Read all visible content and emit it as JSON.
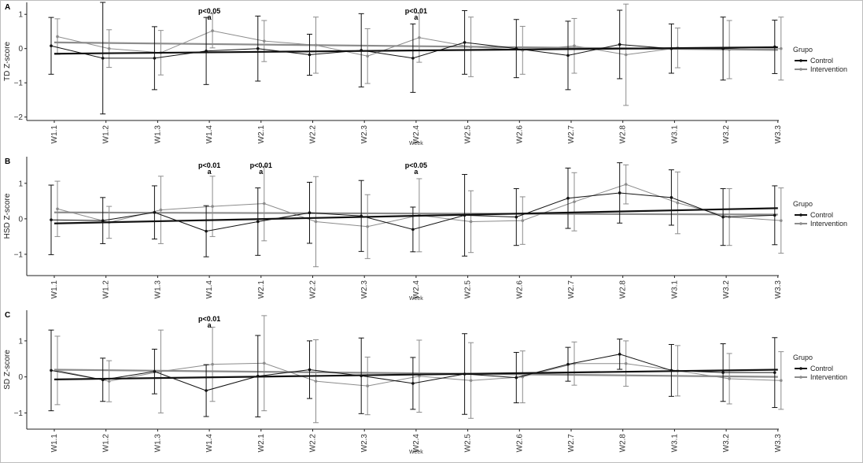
{
  "colors": {
    "control": "#111111",
    "intervention": "#8c8c8c"
  },
  "chart_data": [
    {
      "type": "line",
      "panel": "A",
      "ylabel": "TD Z-score",
      "xlabel": "Week",
      "ylim": [
        -2.1,
        1.35
      ],
      "yticks": [
        -2,
        -1,
        0,
        1
      ],
      "categories": [
        "W1.1",
        "W1.2",
        "W1.3",
        "W1.4",
        "W2.1",
        "W2.2",
        "W2.3",
        "W2.4",
        "W2.5",
        "W2.6",
        "W2.7",
        "W2.8",
        "W3.1",
        "W3.2",
        "W3.3"
      ],
      "legend": {
        "title": "Grupo",
        "position": "right"
      },
      "series": [
        {
          "name": "Control",
          "values": [
            0.08,
            -0.28,
            -0.28,
            -0.07,
            0.0,
            -0.18,
            -0.05,
            -0.28,
            0.18,
            0.0,
            -0.2,
            0.12,
            0.0,
            0.0,
            0.05
          ],
          "err": [
            0.83,
            1.63,
            0.92,
            0.98,
            0.95,
            0.6,
            1.07,
            1.0,
            0.93,
            0.85,
            1.0,
            1.0,
            0.72,
            0.92,
            0.78
          ],
          "trend": [
            -0.15,
            0.04
          ]
        },
        {
          "name": "Intervention",
          "values": [
            0.35,
            0.0,
            -0.12,
            0.52,
            0.22,
            0.1,
            -0.22,
            0.32,
            0.05,
            -0.05,
            0.08,
            -0.18,
            0.02,
            -0.03,
            0.0
          ],
          "err": [
            0.52,
            0.55,
            0.65,
            0.5,
            0.6,
            0.82,
            0.8,
            0.72,
            0.87,
            0.7,
            0.8,
            1.48,
            0.58,
            0.85,
            0.92
          ],
          "trend": [
            0.18,
            -0.04
          ]
        }
      ],
      "annotations": [
        {
          "category": "W1.4",
          "text": "p<0.05",
          "sub": "a"
        },
        {
          "category": "W2.4",
          "text": "p<0.01",
          "sub": "a"
        }
      ]
    },
    {
      "type": "line",
      "panel": "B",
      "ylabel": "HSD Z-score",
      "xlabel": "Week",
      "ylim": [
        -1.6,
        1.75
      ],
      "yticks": [
        -1,
        0,
        1
      ],
      "categories": [
        "W1.1",
        "W1.2",
        "W1.3",
        "W1.4",
        "W2.1",
        "W2.2",
        "W2.3",
        "W2.4",
        "W2.5",
        "W2.6",
        "W2.7",
        "W2.8",
        "W3.1",
        "W3.2",
        "W3.3"
      ],
      "legend": {
        "title": "Grupo",
        "position": "right"
      },
      "series": [
        {
          "name": "Control",
          "values": [
            -0.03,
            -0.05,
            0.18,
            -0.35,
            -0.08,
            0.17,
            0.08,
            -0.3,
            0.1,
            0.05,
            0.58,
            0.73,
            0.6,
            0.05,
            0.1
          ],
          "err": [
            0.98,
            0.65,
            0.75,
            0.72,
            0.95,
            0.86,
            1.0,
            0.63,
            1.15,
            0.8,
            0.85,
            0.85,
            0.78,
            0.8,
            0.83
          ],
          "trend": [
            -0.13,
            0.3
          ]
        },
        {
          "name": "Intervention",
          "values": [
            0.28,
            -0.1,
            0.25,
            0.35,
            0.43,
            -0.08,
            -0.22,
            0.1,
            -0.08,
            -0.05,
            0.48,
            0.97,
            0.45,
            0.05,
            -0.05
          ],
          "err": [
            0.78,
            0.45,
            0.95,
            0.85,
            1.05,
            1.27,
            0.9,
            1.03,
            0.87,
            0.67,
            0.82,
            0.55,
            0.87,
            0.8,
            0.92
          ],
          "trend": [
            0.18,
            0.12
          ]
        }
      ],
      "annotations": [
        {
          "category": "W1.4",
          "text": "p<0.01",
          "sub": "a"
        },
        {
          "category": "W2.1",
          "text": "p<0.01",
          "sub": "a"
        },
        {
          "category": "W2.4",
          "text": "p<0.05",
          "sub": "a"
        }
      ]
    },
    {
      "type": "line",
      "panel": "C",
      "ylabel": "SD Z-score",
      "xlabel": "Week",
      "ylim": [
        -1.45,
        1.85
      ],
      "yticks": [
        -1,
        0,
        1
      ],
      "categories": [
        "W1.1",
        "W1.2",
        "W1.3",
        "W1.4",
        "W2.1",
        "W2.2",
        "W2.3",
        "W2.4",
        "W2.5",
        "W2.6",
        "W2.7",
        "W2.8",
        "W3.1",
        "W3.2",
        "W3.3"
      ],
      "legend": {
        "title": "Grupo",
        "position": "right"
      },
      "series": [
        {
          "name": "Control",
          "values": [
            0.18,
            -0.08,
            0.15,
            -0.38,
            0.02,
            0.2,
            0.03,
            -0.18,
            0.08,
            -0.02,
            0.35,
            0.63,
            0.18,
            0.12,
            0.12
          ],
          "err": [
            1.12,
            0.6,
            0.62,
            0.72,
            1.13,
            0.8,
            1.05,
            0.72,
            1.12,
            0.7,
            0.47,
            0.42,
            0.72,
            0.8,
            0.97
          ],
          "trend": [
            -0.07,
            0.2
          ]
        },
        {
          "name": "Intervention",
          "values": [
            0.18,
            -0.12,
            0.15,
            0.35,
            0.38,
            -0.12,
            -0.25,
            0.02,
            -0.1,
            0.0,
            0.37,
            0.37,
            0.17,
            -0.05,
            -0.1
          ],
          "err": [
            0.95,
            0.57,
            1.15,
            1.03,
            1.32,
            1.15,
            0.8,
            1.0,
            1.05,
            0.72,
            0.6,
            0.63,
            0.7,
            0.7,
            0.8
          ],
          "trend": [
            0.2,
            0.0
          ]
        }
      ],
      "annotations": [
        {
          "category": "W1.4",
          "text": "p<0.01",
          "sub": "a"
        }
      ]
    }
  ]
}
